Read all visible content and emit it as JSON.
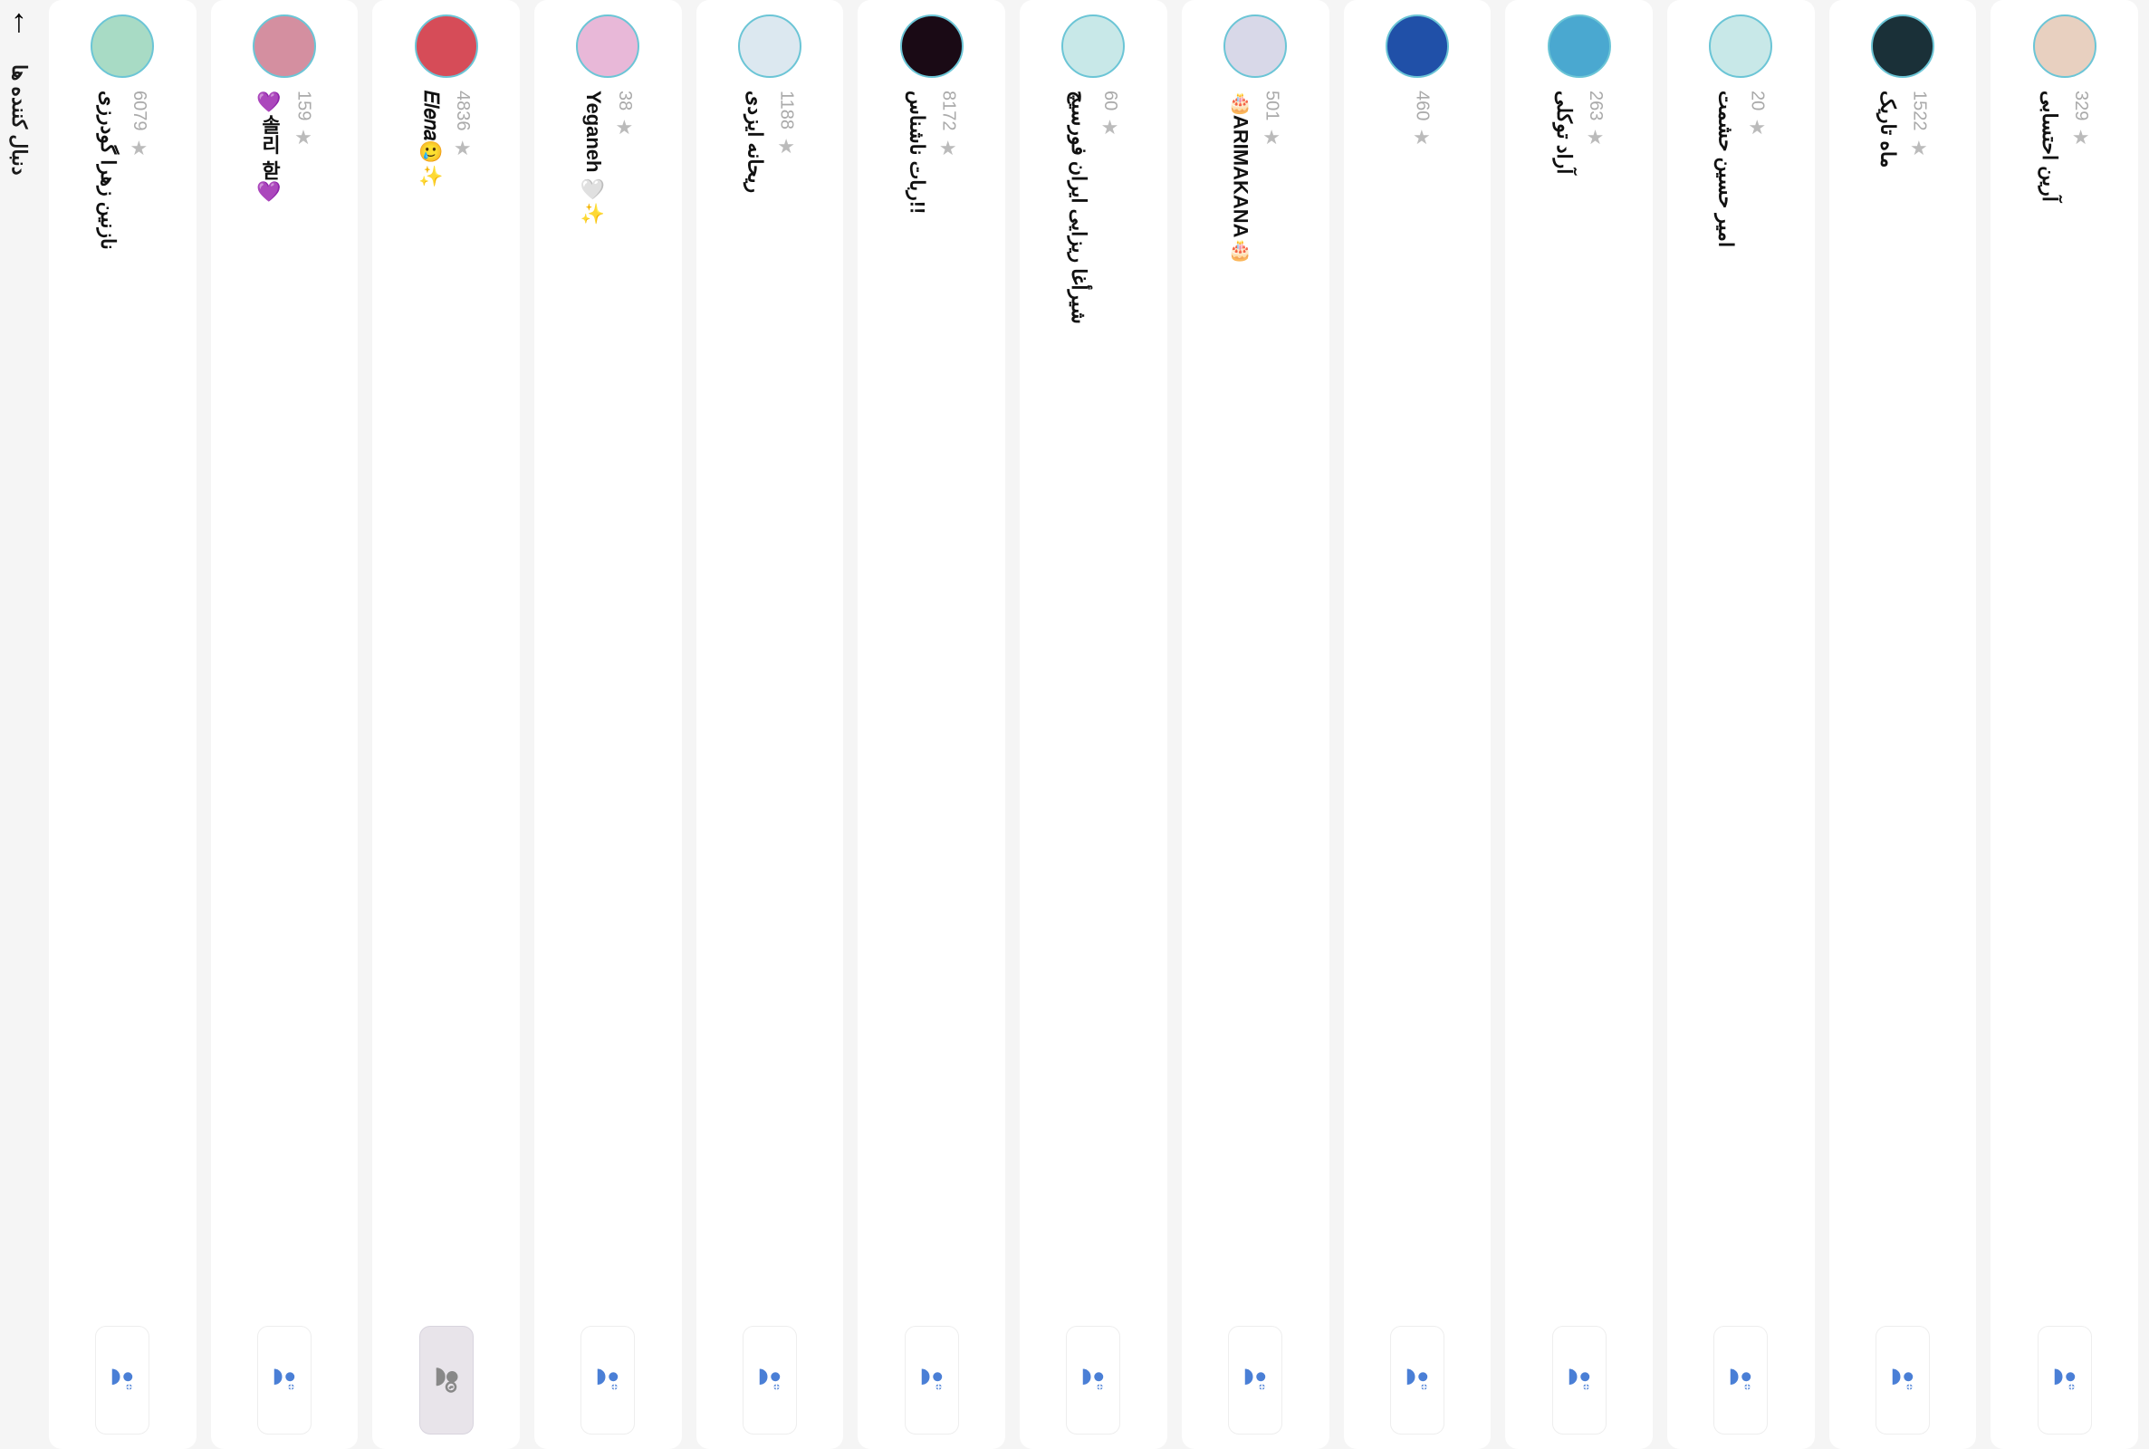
{
  "header": {
    "title": "دنبال کننده ها"
  },
  "icons": {
    "follow_color": "#4a7fd6",
    "pending_color": "#888",
    "star_color": "#bbb"
  },
  "followers": [
    {
      "name": "نازنین زهرا گودرزی",
      "count": "6079",
      "avatar_bg": "#a8dbc5",
      "avatar_txt": "",
      "state": "normal"
    },
    {
      "name": "💜솔리 핟💜",
      "count": "159",
      "avatar_bg": "#d48fa0",
      "avatar_txt": "",
      "state": "normal"
    },
    {
      "name": "𝐸𝑙𝑒𝑛𝑎🥲✨",
      "count": "4836",
      "avatar_bg": "#d64c58",
      "avatar_txt": "",
      "state": "pending"
    },
    {
      "name": "Yeganeh 🤍✨",
      "count": "38",
      "avatar_bg": "#e8b8d8",
      "avatar_txt": "",
      "state": "normal"
    },
    {
      "name": "ریحانه ایزدی",
      "count": "1188",
      "avatar_bg": "#dce8f0",
      "avatar_txt": "",
      "state": "normal"
    },
    {
      "name": "ربات ناشناس!!",
      "count": "8172",
      "avatar_bg": "#1a0a15",
      "avatar_txt": "",
      "state": "normal"
    },
    {
      "name": "شیرأغا ریزایی ایران فورسیچ",
      "count": "60",
      "avatar_bg": "#c8e8e8",
      "avatar_txt": "",
      "state": "normal"
    },
    {
      "name": "🎂ARIMAKANA🎂",
      "count": "501",
      "avatar_bg": "#d8d8e8",
      "avatar_txt": "",
      "state": "normal"
    },
    {
      "name": "",
      "count": "460",
      "avatar_bg": "#2050a8",
      "avatar_txt": "",
      "state": "normal"
    },
    {
      "name": "آراد توکلی",
      "count": "263",
      "avatar_bg": "#4aa8d0",
      "avatar_txt": "",
      "state": "normal"
    },
    {
      "name": "امیر حسین حشمت",
      "count": "20",
      "avatar_bg": "#c8e8e8",
      "avatar_txt": "",
      "state": "normal"
    },
    {
      "name": "ماه تاریک",
      "count": "1522",
      "avatar_bg": "#1a3038",
      "avatar_txt": "",
      "state": "normal"
    },
    {
      "name": "آرین احتسابی",
      "count": "329",
      "avatar_bg": "#e8d0c0",
      "avatar_txt": "",
      "state": "normal"
    }
  ]
}
